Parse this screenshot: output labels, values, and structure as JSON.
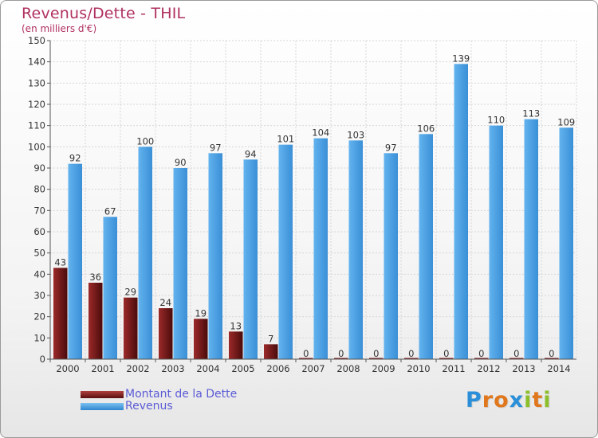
{
  "title": "Revenus/Dette - THIL",
  "subtitle": "(en milliers d'€)",
  "chart_data": {
    "type": "bar",
    "categories": [
      "2000",
      "2001",
      "2002",
      "2003",
      "2004",
      "2005",
      "2006",
      "2007",
      "2008",
      "2009",
      "2010",
      "2011",
      "2012",
      "2013",
      "2014"
    ],
    "series": [
      {
        "name": "Montant de la Dette",
        "color": "#7b1c1c",
        "values": [
          43,
          36,
          29,
          24,
          19,
          13,
          7,
          0,
          0,
          0,
          0,
          0,
          0,
          0,
          0
        ]
      },
      {
        "name": "Revenus",
        "color": "#4ea3e4",
        "values": [
          92,
          67,
          100,
          90,
          97,
          94,
          101,
          104,
          103,
          97,
          106,
          139,
          110,
          113,
          109
        ]
      }
    ],
    "ylim": [
      0,
      150
    ],
    "yticks": [
      0,
      10,
      20,
      30,
      40,
      50,
      60,
      70,
      80,
      90,
      100,
      110,
      120,
      130,
      140,
      150
    ],
    "grid": true,
    "legend": "bottom-left"
  },
  "legend": {
    "items": [
      {
        "label": "Montant de la Dette",
        "color": "#7b1c1c"
      },
      {
        "label": "Revenus",
        "color": "#4ea3e4"
      }
    ]
  },
  "logo": {
    "letters": [
      "P",
      "r",
      "o",
      "x",
      "i",
      "t",
      "i"
    ],
    "colors": [
      "#2a8fd8",
      "#e0771c",
      "#e0771c",
      "#2a8fd8",
      "#8cbf2a",
      "#e0771c",
      "#8cbf2a"
    ]
  }
}
